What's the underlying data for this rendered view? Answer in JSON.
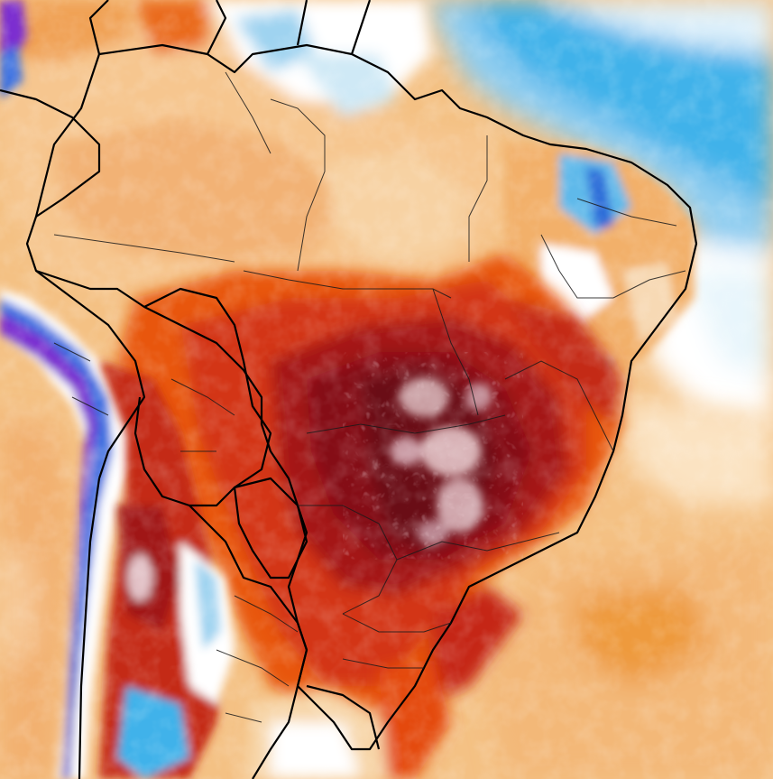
{
  "map": {
    "type": "temperature-anomaly-forecast",
    "region": "South America",
    "labels_printed": [],
    "palette": {
      "extreme_hot": "#5a0a14",
      "very_hot": "#8e0f14",
      "hot": "#c71e10",
      "warm": "#e8560f",
      "mild_warm": "#f39a3c",
      "slight_warm": "#f5c58c",
      "neutral": "#ffffff",
      "slight_cool": "#9fd3f0",
      "cool": "#3db0e8",
      "cold": "#2b4fd8",
      "very_cold": "#7b2fd0",
      "peak_marks": "#d8a4ac"
    },
    "borders": {
      "country_color": "#000000",
      "state_color": "#1a1a1a"
    }
  }
}
